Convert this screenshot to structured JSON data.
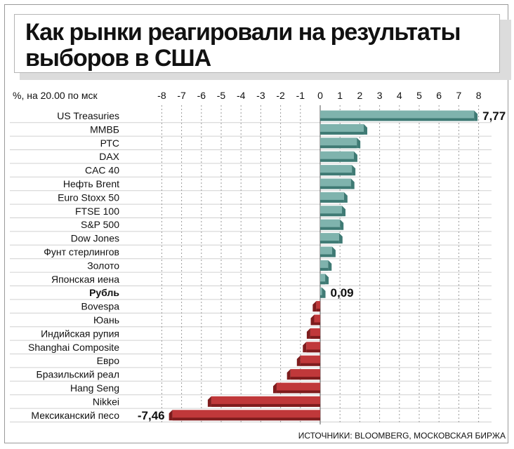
{
  "header": {
    "title": "Как рынки реагировали на результаты выборов в США"
  },
  "chart_data": {
    "type": "bar",
    "orientation": "horizontal",
    "title": "Как рынки реагировали на результаты выборов в США",
    "unit_label": "%, на 20.00 по мск",
    "source": "ИСТОЧНИКИ: BLOOMBERG, МОСКОВСКАЯ БИРЖА",
    "xlim": [
      -8,
      8
    ],
    "x_ticks": [
      -8,
      -7,
      -6,
      -5,
      -4,
      -3,
      -2,
      -1,
      0,
      1,
      2,
      3,
      4,
      5,
      6,
      7,
      8
    ],
    "grid": true,
    "highlight_category": "Рубль",
    "colors": {
      "positive": "#7fb3ad",
      "positive_dark": "#3f7a74",
      "negative": "#c0383a",
      "negative_dark": "#7e1c1d"
    },
    "categories": [
      "US Treasuries",
      "ММВБ",
      "РТС",
      "DAX",
      "CAC 40",
      "Нефть Brent",
      "Euro Stoxx 50",
      "FTSE 100",
      "S&P 500",
      "Dow Jones",
      "Фунт стерлингов",
      "Золото",
      "Японская иена",
      "Рубль",
      "Bovespa",
      "Юань",
      "Индийская рупия",
      "Shanghai Composite",
      "Евро",
      "Бразильский реал",
      "Hang Seng",
      "Nikkei",
      "Мексиканский песо"
    ],
    "values": [
      7.77,
      2.2,
      1.85,
      1.7,
      1.6,
      1.55,
      1.2,
      1.1,
      1.0,
      0.95,
      0.6,
      0.4,
      0.25,
      0.09,
      -0.2,
      -0.3,
      -0.5,
      -0.7,
      -1.0,
      -1.5,
      -2.2,
      -5.5,
      -7.46
    ],
    "data_labels": [
      {
        "category": "US Treasuries",
        "text": "7,77"
      },
      {
        "category": "Рубль",
        "text": "0,09"
      },
      {
        "category": "Мексиканский песо",
        "text": "-7,46"
      }
    ]
  }
}
